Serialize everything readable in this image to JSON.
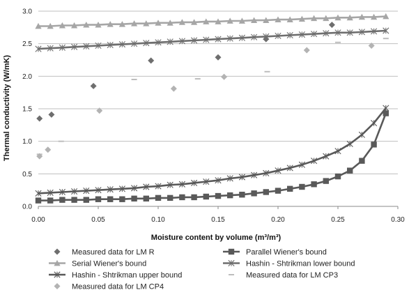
{
  "chart_data": {
    "type": "scatter",
    "xlabel": "Moisture content by volume (m³/m³)",
    "ylabel": "Thermal conductivity (W/mK)",
    "xlim": [
      0,
      0.3
    ],
    "ylim": [
      0,
      3.0
    ],
    "x_ticks": [
      "0.00",
      "0.05",
      "0.10",
      "0.15",
      "0.20",
      "0.25",
      "0.30"
    ],
    "y_ticks": [
      "0.0",
      "0.5",
      "1.0",
      "1.5",
      "2.0",
      "2.5",
      "3.0"
    ],
    "grid": "horizontal",
    "legend_position": "bottom",
    "series": [
      {
        "name": "Measured data for LM R",
        "style": "points",
        "marker": "diamond",
        "color": "#6e6e6e",
        "x": [
          0.001,
          0.011,
          0.046,
          0.094,
          0.15,
          0.19,
          0.245
        ],
        "y": [
          1.35,
          1.41,
          1.85,
          2.24,
          2.29,
          2.57,
          2.79
        ]
      },
      {
        "name": "Parallel Wiener's bound",
        "style": "line",
        "marker": "square",
        "color": "#595959",
        "x": [
          0.0,
          0.01,
          0.02,
          0.03,
          0.04,
          0.05,
          0.06,
          0.07,
          0.08,
          0.09,
          0.1,
          0.11,
          0.12,
          0.13,
          0.14,
          0.15,
          0.16,
          0.17,
          0.18,
          0.19,
          0.2,
          0.21,
          0.22,
          0.23,
          0.24,
          0.25,
          0.26,
          0.27,
          0.28,
          0.29
        ],
        "y": [
          0.09,
          0.09,
          0.1,
          0.1,
          0.1,
          0.11,
          0.11,
          0.11,
          0.12,
          0.12,
          0.13,
          0.13,
          0.14,
          0.14,
          0.15,
          0.16,
          0.17,
          0.18,
          0.2,
          0.22,
          0.24,
          0.27,
          0.3,
          0.34,
          0.39,
          0.46,
          0.55,
          0.7,
          0.95,
          1.43
        ]
      },
      {
        "name": "Serial Wiener's bound",
        "style": "line",
        "marker": "triangle",
        "color": "#a6a6a6",
        "x": [
          0.0,
          0.01,
          0.02,
          0.03,
          0.04,
          0.05,
          0.06,
          0.07,
          0.08,
          0.09,
          0.1,
          0.11,
          0.12,
          0.13,
          0.14,
          0.15,
          0.16,
          0.17,
          0.18,
          0.19,
          0.2,
          0.21,
          0.22,
          0.23,
          0.24,
          0.25,
          0.26,
          0.27,
          0.28,
          0.29
        ],
        "y": [
          2.77,
          2.77,
          2.78,
          2.78,
          2.79,
          2.79,
          2.8,
          2.8,
          2.81,
          2.81,
          2.82,
          2.82,
          2.83,
          2.83,
          2.84,
          2.84,
          2.85,
          2.85,
          2.86,
          2.86,
          2.87,
          2.87,
          2.88,
          2.89,
          2.89,
          2.9,
          2.9,
          2.91,
          2.91,
          2.92
        ]
      },
      {
        "name": "Hashin - Shtrikman lower bound",
        "style": "line",
        "marker": "star",
        "color": "#6e6e6e",
        "x": [
          0.0,
          0.01,
          0.02,
          0.03,
          0.04,
          0.05,
          0.06,
          0.07,
          0.08,
          0.09,
          0.1,
          0.11,
          0.12,
          0.13,
          0.14,
          0.15,
          0.16,
          0.17,
          0.18,
          0.19,
          0.2,
          0.21,
          0.22,
          0.23,
          0.24,
          0.25,
          0.26,
          0.27,
          0.28,
          0.29
        ],
        "y": [
          2.42,
          2.43,
          2.44,
          2.45,
          2.46,
          2.47,
          2.48,
          2.49,
          2.5,
          2.51,
          2.52,
          2.53,
          2.54,
          2.55,
          2.56,
          2.57,
          2.58,
          2.59,
          2.6,
          2.61,
          2.62,
          2.63,
          2.64,
          2.65,
          2.66,
          2.67,
          2.67,
          2.68,
          2.69,
          2.7
        ]
      },
      {
        "name": "Hashin - Shtrikman upper bound",
        "style": "line",
        "marker": "star",
        "color": "#595959",
        "x": [
          0.0,
          0.01,
          0.02,
          0.03,
          0.04,
          0.05,
          0.06,
          0.07,
          0.08,
          0.09,
          0.1,
          0.11,
          0.12,
          0.13,
          0.14,
          0.15,
          0.16,
          0.17,
          0.18,
          0.19,
          0.2,
          0.21,
          0.22,
          0.23,
          0.24,
          0.25,
          0.26,
          0.27,
          0.28,
          0.29
        ],
        "y": [
          0.2,
          0.21,
          0.22,
          0.23,
          0.24,
          0.25,
          0.26,
          0.27,
          0.28,
          0.3,
          0.31,
          0.33,
          0.34,
          0.36,
          0.38,
          0.4,
          0.43,
          0.45,
          0.48,
          0.51,
          0.55,
          0.59,
          0.64,
          0.7,
          0.77,
          0.85,
          0.96,
          1.1,
          1.28,
          1.51
        ]
      },
      {
        "name": "Measured data for LM CP3",
        "style": "points",
        "marker": "dash",
        "color": "#bdbdbd",
        "x": [
          0.001,
          0.019,
          0.08,
          0.133,
          0.191,
          0.25,
          0.29
        ],
        "y": [
          0.8,
          1.0,
          1.95,
          1.96,
          2.07,
          2.52,
          2.58
        ]
      },
      {
        "name": "Measured data for LM CP4",
        "style": "points",
        "marker": "diamond",
        "color": "#b3b3b3",
        "x": [
          0.001,
          0.008,
          0.051,
          0.113,
          0.155,
          0.224,
          0.278
        ],
        "y": [
          0.77,
          0.87,
          1.47,
          1.81,
          1.99,
          2.4,
          2.47
        ]
      }
    ]
  }
}
